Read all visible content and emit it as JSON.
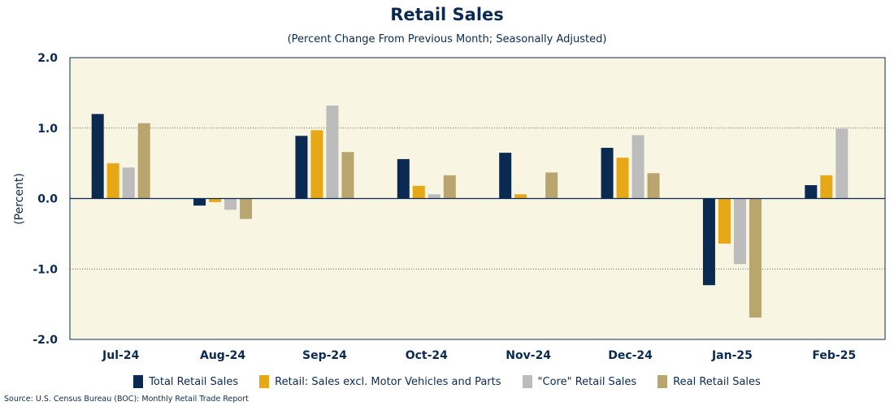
{
  "chart_data": {
    "type": "bar",
    "title": "Retail Sales",
    "subtitle": "(Percent Change From Previous Month; Seasonally Adjusted)",
    "ylabel": "(Percent)",
    "xlabel": "",
    "ylim": [
      -2.0,
      2.0
    ],
    "yticks": [
      "2.0",
      "1.0",
      "0.0",
      "-1.0",
      "-2.0"
    ],
    "ytick_values": [
      2.0,
      1.0,
      0.0,
      -1.0,
      -2.0
    ],
    "grid": "horizontal dotted",
    "legend_position": "bottom",
    "categories": [
      "Jul-24",
      "Aug-24",
      "Sep-24",
      "Oct-24",
      "Nov-24",
      "Dec-24",
      "Jan-25",
      "Feb-25"
    ],
    "series": [
      {
        "name": "Total Retail Sales",
        "color": "#0b2a52",
        "values": [
          1.2,
          -0.1,
          0.89,
          0.56,
          0.65,
          0.72,
          -1.23,
          0.19
        ]
      },
      {
        "name": "Retail: Sales excl. Motor Vehicles and Parts",
        "color": "#e6a817",
        "values": [
          0.5,
          -0.05,
          0.97,
          0.18,
          0.06,
          0.58,
          -0.64,
          0.33
        ]
      },
      {
        "name": "\"Core\" Retail Sales",
        "color": "#bcbcbc",
        "values": [
          0.44,
          -0.16,
          1.32,
          0.06,
          0.0,
          0.9,
          -0.93,
          0.99
        ]
      },
      {
        "name": "Real Retail Sales",
        "color": "#b8a66e",
        "values": [
          1.07,
          -0.29,
          0.66,
          0.33,
          0.37,
          0.36,
          -1.69,
          0.0
        ]
      }
    ],
    "plot_background": "#f8f5e2",
    "text_color": "#0b2a52",
    "source": "Source: U.S. Census Bureau (BOC): Monthly Retail Trade Report"
  }
}
